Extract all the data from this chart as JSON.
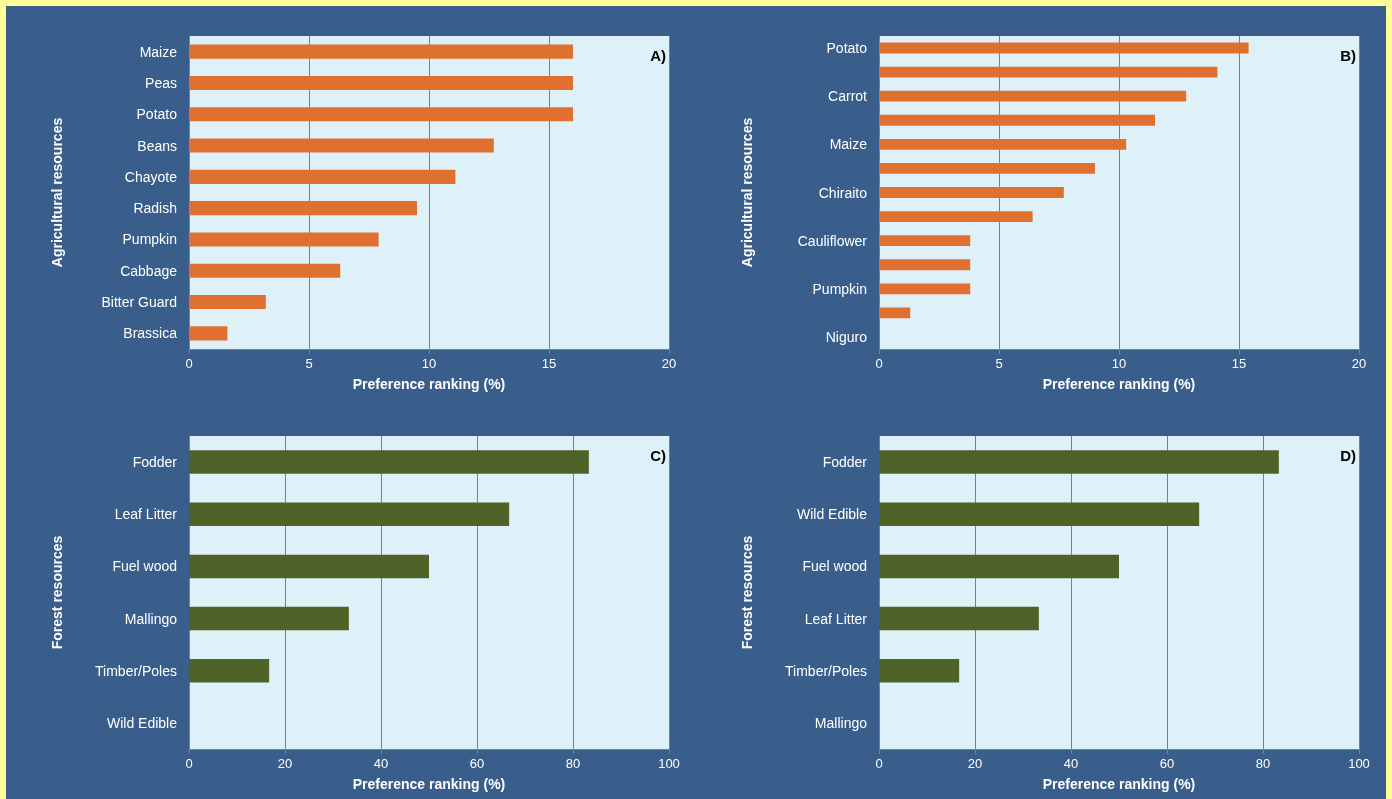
{
  "chart_data": [
    {
      "type": "bar",
      "orientation": "horizontal",
      "categories": [
        "Maize",
        "Peas",
        "Potato",
        "Beans",
        "Chayote",
        "Radish",
        "Pumpkin",
        "Cabbage",
        "Bitter Guard",
        "Brassica"
      ],
      "values": [
        16,
        16,
        16,
        12.7,
        11.1,
        9.5,
        7.9,
        6.3,
        3.2,
        1.6
      ],
      "color": "#e0702f",
      "xlabel": "Preference ranking (%)",
      "ylabel": "Agricultural resources",
      "xlim": [
        0,
        20
      ],
      "xticks": [
        0,
        5,
        10,
        15,
        20
      ],
      "grid": "x",
      "annotations": [
        "A)"
      ]
    },
    {
      "type": "bar",
      "orientation": "horizontal",
      "categories": [
        "Potato",
        null,
        "Carrot",
        null,
        "Maize",
        null,
        "Chiraito",
        null,
        "Cauliflower",
        null,
        "Pumpkin",
        null,
        "Niguro"
      ],
      "values": [
        15.4,
        14.1,
        12.8,
        11.5,
        10.3,
        9,
        7.7,
        6.4,
        3.8,
        3.8,
        3.8,
        1.3,
        0
      ],
      "color": "#e0702f",
      "xlabel": "Preference ranking (%)",
      "ylabel": "Agricultural resources",
      "xlim": [
        0,
        20
      ],
      "xticks": [
        0,
        5,
        10,
        15,
        20
      ],
      "grid": "x",
      "annotations": [
        "B)"
      ]
    },
    {
      "type": "bar",
      "orientation": "horizontal",
      "categories": [
        "Fodder",
        "Leaf Litter",
        "Fuel wood",
        "Mallingo",
        "Timber/Poles",
        "Wild Edible"
      ],
      "values": [
        83.3,
        66.7,
        50,
        33.3,
        16.7,
        0
      ],
      "color": "#4f6228",
      "xlabel": "Preference ranking (%)",
      "ylabel": "Forest resources",
      "xlim": [
        0,
        100
      ],
      "xticks": [
        0,
        20,
        40,
        60,
        80,
        100
      ],
      "grid": "x",
      "annotations": [
        "C)"
      ]
    },
    {
      "type": "bar",
      "orientation": "horizontal",
      "categories": [
        "Fodder",
        "Wild Edible",
        "Fuel wood",
        "Leaf Litter",
        "Timber/Poles",
        "Mallingo"
      ],
      "values": [
        83.3,
        66.7,
        50,
        33.3,
        16.7,
        0
      ],
      "color": "#4f6228",
      "xlabel": "Preference ranking (%)",
      "ylabel": "Forest resources",
      "xlim": [
        0,
        100
      ],
      "xticks": [
        0,
        20,
        40,
        60,
        80,
        100
      ],
      "grid": "x",
      "annotations": [
        "D)"
      ]
    }
  ]
}
